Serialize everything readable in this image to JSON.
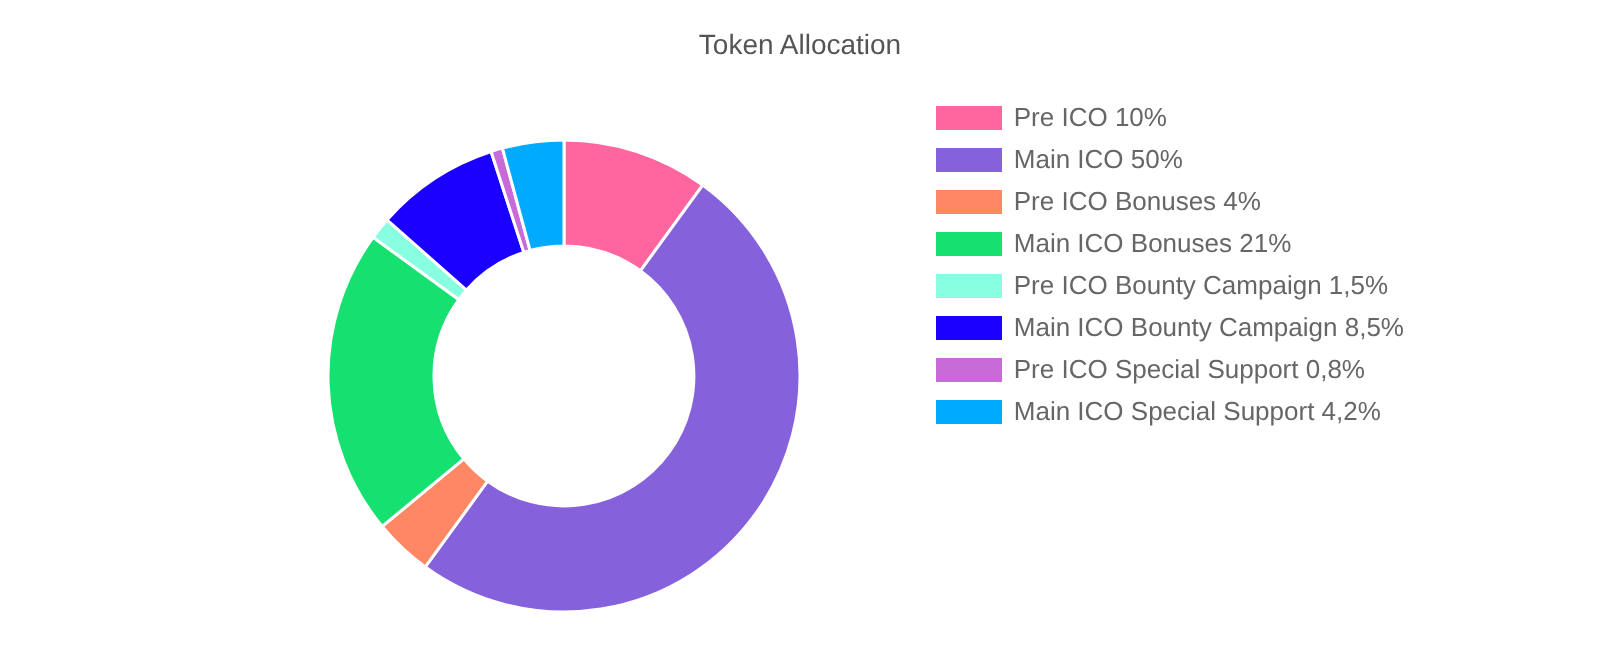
{
  "chart_data": {
    "type": "donut",
    "title": "Token Allocation",
    "categories": [
      "Pre ICO 10%",
      "Main ICO 50%",
      "Pre ICO Bonuses 4%",
      "Main ICO Bonuses 21%",
      "Pre ICO Bounty Campaign 1,5%",
      "Main ICO Bounty Campaign 8,5%",
      "Pre ICO Special Support 0,8%",
      "Main ICO Special Support 4,2%"
    ],
    "values": [
      10,
      50,
      4,
      21,
      1.5,
      8.5,
      0.8,
      4.2
    ],
    "colors": [
      "#ff66a0",
      "#8562dc",
      "#ff8764",
      "#16e070",
      "#88ffe0",
      "#1900ff",
      "#c86ad8",
      "#00aaff"
    ],
    "legend": "right"
  }
}
